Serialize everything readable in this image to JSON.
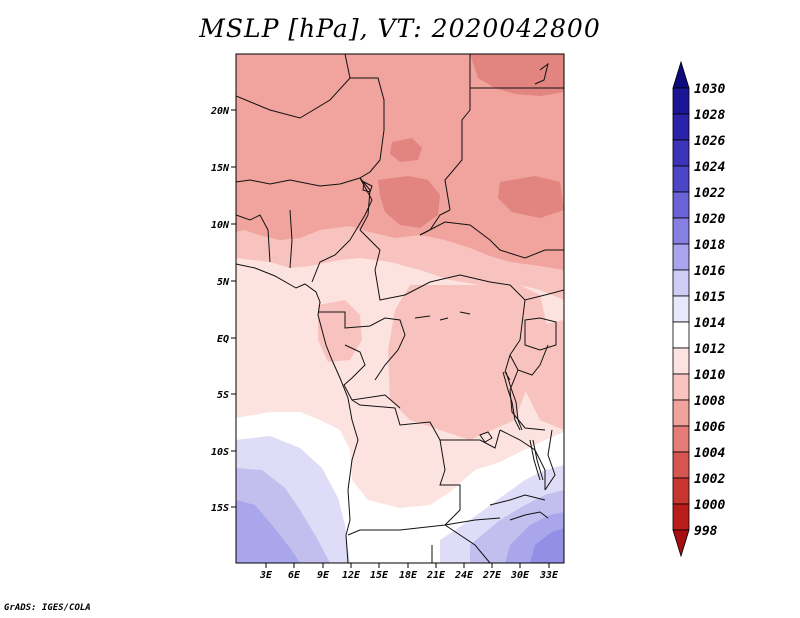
{
  "title": "MSLP [hPa], VT: 2020042800",
  "credit": "GrADS: IGES/COLA",
  "map": {
    "lat_labels": [
      "20N",
      "15N",
      "10N",
      "5N",
      "EQ",
      "5S",
      "10S",
      "15S"
    ],
    "lon_labels": [
      "3E",
      "6E",
      "9E",
      "12E",
      "15E",
      "18E",
      "21E",
      "24E",
      "27E",
      "30E",
      "33E"
    ]
  },
  "colorbar": {
    "labels": [
      "1030",
      "1028",
      "1026",
      "1024",
      "1022",
      "1020",
      "1018",
      "1016",
      "1015",
      "1014",
      "1012",
      "1010",
      "1008",
      "1006",
      "1004",
      "1002",
      "1000",
      "998"
    ],
    "colors": [
      "#0d0a7e",
      "#1c1696",
      "#2a22a8",
      "#3b33b8",
      "#4c45c6",
      "#6a62d6",
      "#8680e2",
      "#a9a4ee",
      "#cfcdf6",
      "#e8e8fa",
      "#ffffff",
      "#fde3e0",
      "#f9c4bf",
      "#f0a29c",
      "#e47d78",
      "#d65550",
      "#c93530",
      "#b81d1a",
      "#a50f12"
    ]
  },
  "legend_colors": {
    "l1012": "#fde3e0",
    "l1010": "#f8c3be",
    "l1008": "#f1a39d",
    "l1006": "#e2847f",
    "l1014": "#ffffff",
    "l1015": "#dedcf6",
    "l1016": "#c2bfef",
    "l1018": "#aaa6eb",
    "l1020": "#938ee6"
  }
}
